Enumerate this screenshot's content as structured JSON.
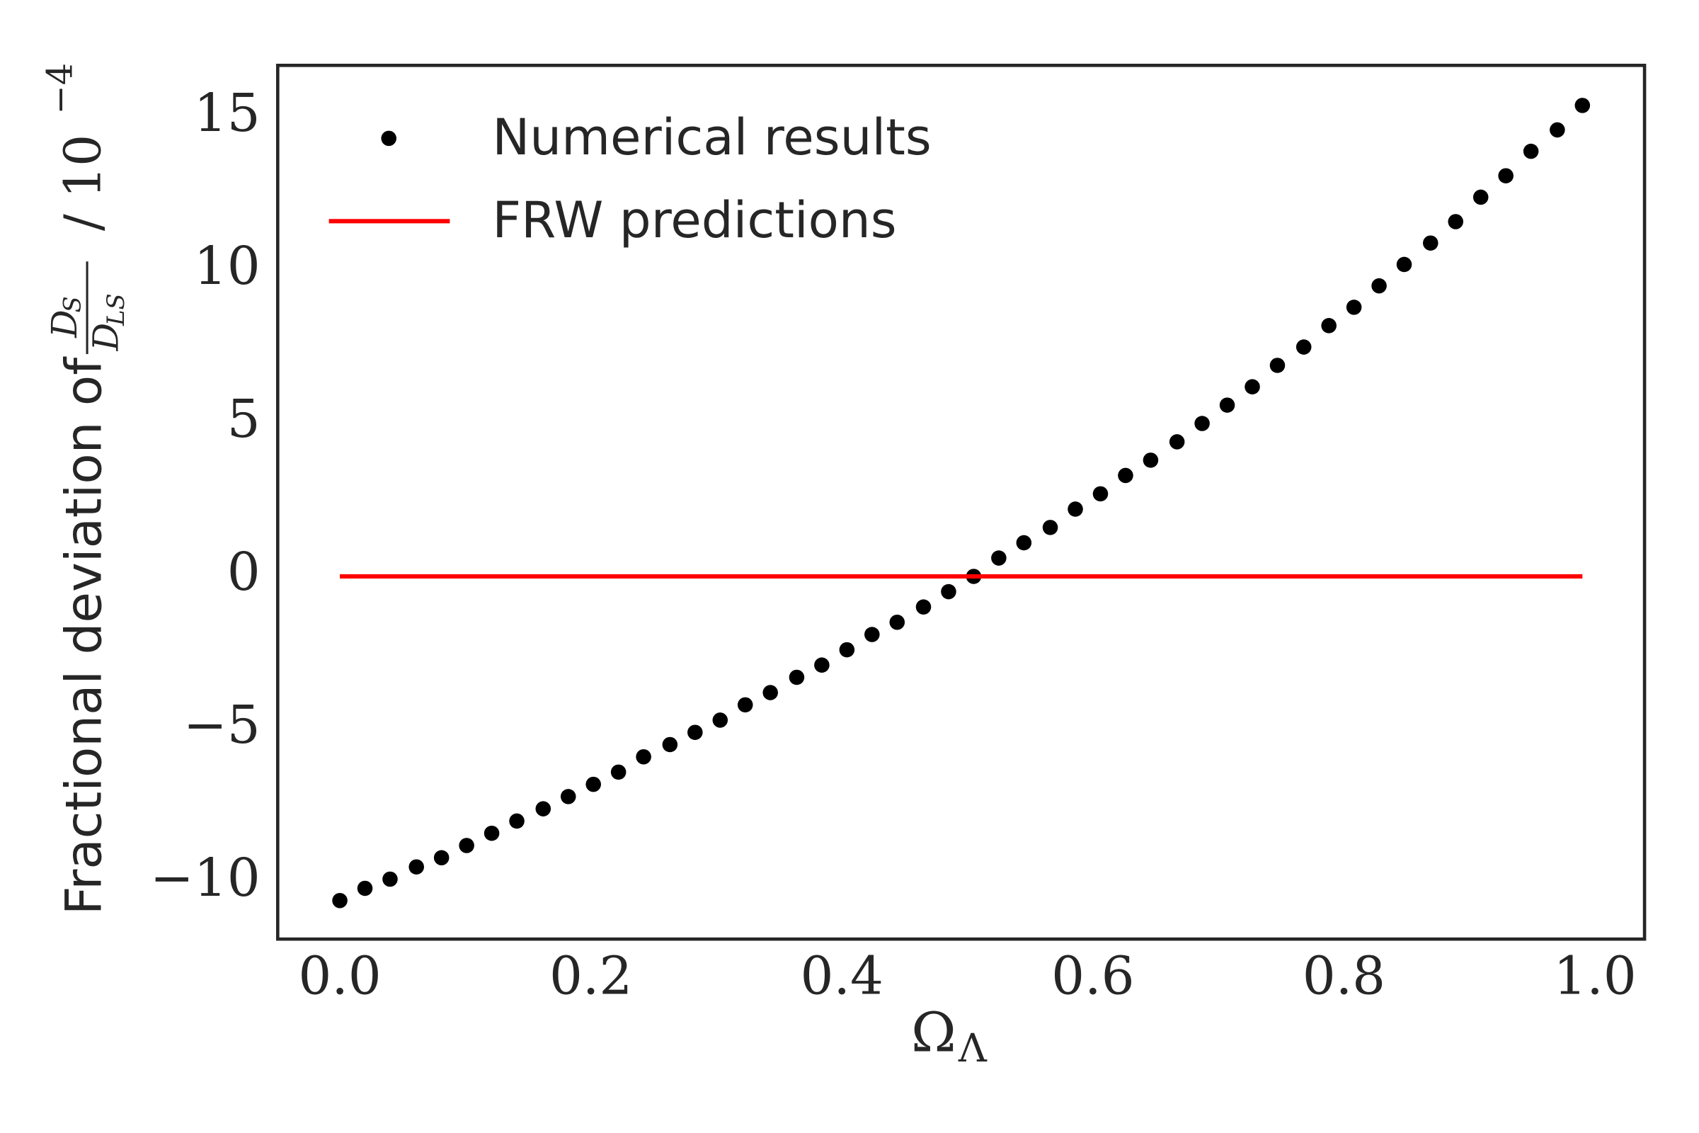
{
  "chart_data": {
    "type": "scatter",
    "xlabel": {
      "text": "Ω",
      "sub": "Λ"
    },
    "ylabel": {
      "text": "Fractional deviation of",
      "num": "D",
      "num_sub": "S",
      "den": "D",
      "den_sub": "LS",
      "unit": "/ 10",
      "unit_exp": "−4"
    },
    "xlim": [
      -0.0495,
      1.0395
    ],
    "ylim": [
      -11.86,
      16.71
    ],
    "xticks": [
      {
        "value": 0,
        "label": "0.0"
      },
      {
        "value": 0.2,
        "label": "0.2"
      },
      {
        "value": 0.4,
        "label": "0.4"
      },
      {
        "value": 0.6,
        "label": "0.6"
      },
      {
        "value": 0.8,
        "label": "0.8"
      },
      {
        "value": 1,
        "label": "1.0"
      }
    ],
    "yticks": [
      {
        "value": -10,
        "label": "−10"
      },
      {
        "value": -5,
        "label": "−5"
      },
      0,
      5,
      10,
      15
    ],
    "grid": false,
    "legend": "upper left",
    "series": [
      {
        "name": "Numerical results",
        "color": "#000000",
        "mode": "markers",
        "x": [
          0,
          0.02,
          0.04,
          0.061,
          0.081,
          0.101,
          0.121,
          0.141,
          0.162,
          0.182,
          0.202,
          0.222,
          0.242,
          0.263,
          0.283,
          0.303,
          0.323,
          0.343,
          0.364,
          0.384,
          0.404,
          0.424,
          0.444,
          0.465,
          0.485,
          0.505,
          0.525,
          0.545,
          0.566,
          0.586,
          0.606,
          0.626,
          0.646,
          0.667,
          0.687,
          0.707,
          0.727,
          0.747,
          0.768,
          0.788,
          0.808,
          0.828,
          0.848,
          0.869,
          0.889,
          0.909,
          0.929,
          0.949,
          0.97,
          0.99
        ],
        "values": [
          -10.6,
          -10.2,
          -9.9,
          -9.5,
          -9.2,
          -8.8,
          -8.4,
          -8.0,
          -7.6,
          -7.2,
          -6.8,
          -6.4,
          -5.9,
          -5.5,
          -5.1,
          -4.7,
          -4.2,
          -3.8,
          -3.3,
          -2.9,
          -2.4,
          -1.9,
          -1.5,
          -1.0,
          -0.5,
          0.0,
          0.6,
          1.1,
          1.6,
          2.2,
          2.7,
          3.3,
          3.8,
          4.4,
          5.0,
          5.6,
          6.2,
          6.9,
          7.5,
          8.2,
          8.8,
          9.5,
          10.2,
          10.9,
          11.6,
          12.4,
          13.1,
          13.9,
          14.6,
          15.4
        ]
      },
      {
        "name": "FRW predictions",
        "color": "#ff0000",
        "mode": "line",
        "x": [
          0,
          0.99
        ],
        "values": [
          0,
          0
        ]
      }
    ]
  }
}
